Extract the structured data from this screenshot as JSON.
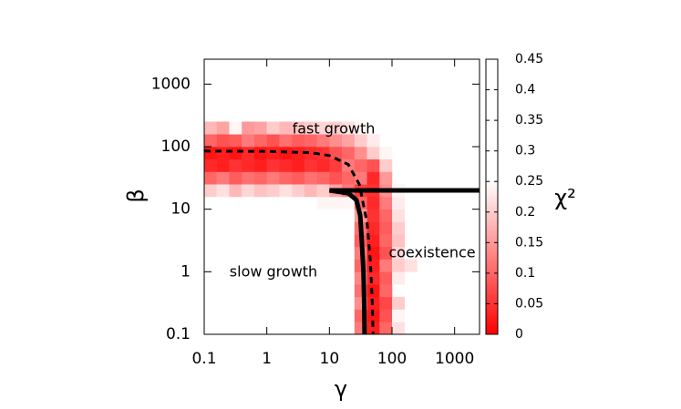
{
  "chart_data": {
    "type": "heatmap",
    "x_label": "γ",
    "y_label": "β",
    "colorbar_label": "χ²",
    "log_x": true,
    "log_y": true,
    "xlim": [
      0.1,
      2500
    ],
    "ylim": [
      0.1,
      2500
    ],
    "xticks": [
      0.1,
      1,
      10,
      100,
      1000
    ],
    "yticks": [
      0.1,
      1,
      10,
      100,
      1000
    ],
    "clim": [
      0,
      0.45
    ],
    "cticks": [
      0,
      0.05,
      0.1,
      0.15,
      0.2,
      0.25,
      0.3,
      0.35,
      0.4,
      0.45
    ],
    "colormap": [
      {
        "value": 0,
        "color": "#ff0000"
      },
      {
        "value": 0.25,
        "color": "#ffffff"
      }
    ],
    "xbins": [
      0.1,
      0.158,
      0.251,
      0.398,
      0.631,
      1,
      1.585,
      2.512,
      3.981,
      6.31,
      10,
      15.85,
      25.12,
      39.81,
      63.1,
      100,
      158.5,
      251.2
    ],
    "ybins": [
      0.1,
      0.158,
      0.251,
      0.398,
      0.631,
      1,
      1.585,
      2.512,
      3.981,
      6.31,
      10,
      15.85,
      25.12,
      39.81,
      63.1,
      100,
      158.5,
      251.2
    ],
    "z": [
      [
        null,
        null,
        null,
        null,
        null,
        null,
        null,
        null,
        null,
        null,
        null,
        null,
        0.12,
        0.03,
        0.1,
        0.22,
        null
      ],
      [
        null,
        null,
        null,
        null,
        null,
        null,
        null,
        null,
        null,
        null,
        null,
        null,
        0.1,
        0.02,
        0.08,
        0.24,
        null
      ],
      [
        null,
        null,
        null,
        null,
        null,
        null,
        null,
        null,
        null,
        null,
        null,
        null,
        0.14,
        0.03,
        0.07,
        0.2,
        null
      ],
      [
        null,
        null,
        null,
        null,
        null,
        null,
        null,
        null,
        null,
        null,
        null,
        null,
        0.11,
        0.02,
        0.1,
        null,
        null
      ],
      [
        null,
        null,
        null,
        null,
        null,
        null,
        null,
        null,
        null,
        null,
        null,
        null,
        0.13,
        0.04,
        0.09,
        0.23,
        null
      ],
      [
        null,
        null,
        null,
        null,
        null,
        null,
        null,
        null,
        null,
        null,
        null,
        null,
        0.1,
        0.03,
        0.12,
        0.2,
        0.22
      ],
      [
        null,
        null,
        null,
        null,
        null,
        null,
        null,
        null,
        null,
        null,
        null,
        null,
        0.12,
        0.02,
        0.08,
        0.21,
        null
      ],
      [
        null,
        null,
        null,
        null,
        null,
        null,
        null,
        null,
        null,
        null,
        null,
        null,
        0.09,
        0.03,
        0.1,
        0.19,
        null
      ],
      [
        null,
        null,
        null,
        null,
        null,
        null,
        null,
        null,
        null,
        null,
        null,
        null,
        0.11,
        0.04,
        0.09,
        0.2,
        null
      ],
      [
        null,
        null,
        null,
        null,
        null,
        null,
        null,
        null,
        null,
        null,
        null,
        null,
        0.15,
        0.05,
        0.1,
        0.22,
        null
      ],
      [
        null,
        null,
        null,
        null,
        null,
        null,
        null,
        null,
        null,
        0.24,
        0.24,
        0.24,
        0.1,
        0.04,
        0.12,
        0.23,
        null
      ],
      [
        0.2,
        0.22,
        0.18,
        0.21,
        0.19,
        0.2,
        0.22,
        0.2,
        0.18,
        0.2,
        0.16,
        0.12,
        0.06,
        0.05,
        0.14,
        0.24,
        null
      ],
      [
        0.1,
        0.12,
        0.09,
        0.11,
        0.1,
        0.12,
        0.1,
        0.09,
        0.11,
        0.1,
        0.08,
        0.1,
        0.12,
        0.04,
        0.15,
        null,
        null
      ],
      [
        0.04,
        0.03,
        0.05,
        0.04,
        0.03,
        0.05,
        0.04,
        0.03,
        0.05,
        0.04,
        0.06,
        0.12,
        0.1,
        0.08,
        0.2,
        null,
        null
      ],
      [
        0.02,
        0.03,
        0.02,
        0.04,
        0.02,
        0.03,
        0.02,
        0.03,
        0.04,
        0.05,
        0.08,
        0.1,
        0.14,
        0.2,
        0.24,
        null,
        null
      ],
      [
        0.1,
        0.08,
        0.09,
        0.12,
        0.1,
        0.08,
        0.11,
        0.09,
        0.1,
        0.12,
        0.14,
        0.16,
        0.2,
        0.23,
        null,
        null,
        null
      ],
      [
        0.18,
        0.16,
        0.24,
        0.15,
        0.16,
        0.2,
        0.18,
        0.19,
        0.2,
        0.21,
        0.2,
        0.22,
        0.24,
        null,
        null,
        null,
        null
      ]
    ],
    "lines": [
      {
        "x": [
          0.1,
          1,
          5,
          10,
          20,
          30,
          40,
          45,
          48,
          50
        ],
        "y": [
          85,
          84,
          80,
          72,
          52,
          25,
          6,
          1.5,
          0.4,
          0.1
        ],
        "color": "#000000",
        "dashed": true
      },
      {
        "x": [
          10,
          2500
        ],
        "y": [
          20,
          20
        ],
        "color": "#000000",
        "dashed": false
      },
      {
        "x": [
          10,
          20,
          27,
          31,
          33,
          35,
          36,
          36.5
        ],
        "y": [
          20,
          18,
          14,
          8,
          3,
          1,
          0.3,
          0.1
        ],
        "color": "#000000",
        "dashed": false
      }
    ],
    "annotations": [
      "fast growth",
      "slow growth",
      "coexistence"
    ]
  }
}
